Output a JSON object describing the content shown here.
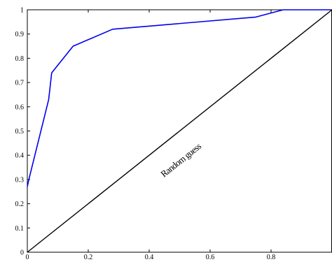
{
  "chart_data": {
    "type": "line",
    "title": "",
    "xlabel": "",
    "ylabel": "",
    "xlim": [
      0,
      1
    ],
    "ylim": [
      0,
      1
    ],
    "grid": false,
    "x_ticks": [
      "0",
      "0.2",
      "0.4",
      "0.6",
      "0.8"
    ],
    "y_ticks": [
      "0",
      "0.1",
      "0.2",
      "0.3",
      "0.4",
      "0.5",
      "0.6",
      "0.7",
      "0.8",
      "0.9",
      "1"
    ],
    "series": [
      {
        "color": "#0000ee",
        "x": [
          0,
          0.005,
          0.07,
          0.08,
          0.15,
          0.28,
          0.75,
          0.84,
          0.85,
          1.0
        ],
        "y": [
          0.27,
          0.3,
          0.63,
          0.74,
          0.85,
          0.92,
          0.97,
          1.0,
          1.0,
          1.0
        ]
      },
      {
        "color": "#000000",
        "x": [
          0,
          1
        ],
        "y": [
          0,
          1
        ]
      }
    ],
    "annotations": [
      {
        "text": "Random guess",
        "x": 0.51,
        "y": 0.37
      }
    ]
  }
}
